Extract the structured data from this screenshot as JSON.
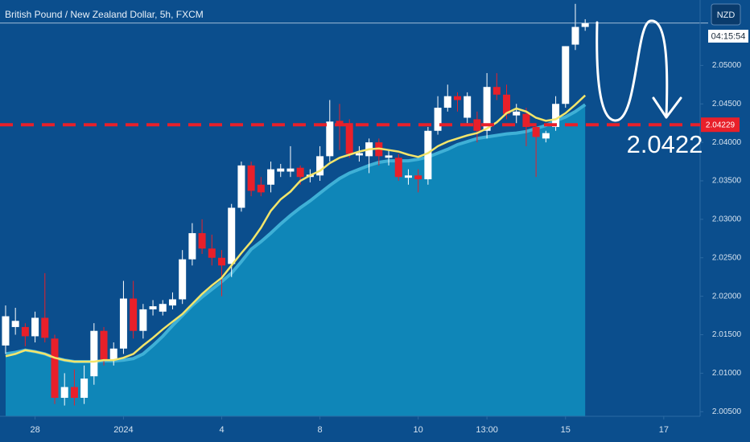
{
  "chart_data": {
    "type": "candlestick",
    "title": "British Pound / New Zealand Dollar, 5h, FXCM",
    "currency": "NZD",
    "countdown": "04:15:54",
    "annotation": "2.0422",
    "up_color": "#ffffff",
    "down_color": "#e8202a",
    "grid": false,
    "x": [
      0,
      1,
      2,
      3,
      4,
      5,
      6,
      7,
      8,
      9,
      10,
      11,
      12,
      13,
      14,
      15,
      16,
      17,
      18,
      19,
      20,
      21,
      22,
      23,
      24,
      25,
      26,
      27,
      28,
      29,
      30,
      31,
      32,
      33,
      34,
      35,
      36,
      37,
      38,
      39,
      40,
      41,
      42,
      43,
      44,
      45,
      46,
      47,
      48,
      49,
      50,
      51,
      52,
      53,
      54,
      55,
      56,
      57,
      58,
      59
    ],
    "open": [
      2.0136,
      2.016,
      2.016,
      2.0148,
      2.0172,
      2.0145,
      2.0068,
      2.0082,
      2.0068,
      2.0096,
      2.0155,
      2.0118,
      2.0132,
      2.0197,
      2.0155,
      2.0183,
      2.018,
      2.0188,
      2.0196,
      2.0248,
      2.0282,
      2.0262,
      2.025,
      2.0242,
      2.0315,
      2.037,
      2.0345,
      2.0345,
      2.0362,
      2.0362,
      2.0367,
      2.0355,
      2.0357,
      2.0382,
      2.0428,
      2.0425,
      2.0383,
      2.0382,
      2.04,
      2.038,
      2.038,
      2.0354,
      2.0357,
      2.0352,
      2.0415,
      2.0445,
      2.046,
      2.0432,
      2.043,
      2.0415,
      2.0472,
      2.0462,
      2.0435,
      2.0437,
      2.042,
      2.0405,
      2.042,
      2.045,
      2.0527,
      2.055
    ],
    "high": [
      2.0188,
      2.0185,
      2.0165,
      2.018,
      2.023,
      2.015,
      2.01,
      2.0105,
      2.011,
      2.0165,
      2.016,
      2.014,
      2.022,
      2.022,
      2.019,
      2.0195,
      2.0195,
      2.0205,
      2.026,
      2.0295,
      2.03,
      2.028,
      2.026,
      2.032,
      2.0375,
      2.0375,
      2.0355,
      2.0375,
      2.0372,
      2.0395,
      2.037,
      2.0365,
      2.0395,
      2.0455,
      2.045,
      2.043,
      2.0395,
      2.0405,
      2.0405,
      2.039,
      2.0385,
      2.0365,
      2.0365,
      2.042,
      2.046,
      2.0475,
      2.0465,
      2.0465,
      2.044,
      2.049,
      2.049,
      2.0475,
      2.045,
      2.0445,
      2.0425,
      2.0415,
      2.046,
      2.0525,
      2.058,
      2.056
    ],
    "low": [
      2.0125,
      2.015,
      2.0135,
      2.014,
      2.014,
      2.006,
      2.0058,
      2.0058,
      2.006,
      2.0085,
      2.011,
      2.011,
      2.0125,
      2.0145,
      2.0145,
      2.0175,
      2.0175,
      2.0183,
      2.019,
      2.024,
      2.0255,
      2.024,
      2.02,
      2.0225,
      2.031,
      2.033,
      2.033,
      2.0335,
      2.0355,
      2.0355,
      2.0345,
      2.0348,
      2.035,
      2.0375,
      2.039,
      2.038,
      2.0375,
      2.036,
      2.037,
      2.037,
      2.035,
      2.0345,
      2.0335,
      2.0345,
      2.041,
      2.044,
      2.044,
      2.0425,
      2.04,
      2.0405,
      2.0455,
      2.043,
      2.0425,
      2.0395,
      2.0355,
      2.04,
      2.0415,
      2.0445,
      2.052,
      2.0545
    ],
    "close": [
      2.0174,
      2.0168,
      2.0148,
      2.0172,
      2.0146,
      2.0068,
      2.0082,
      2.0068,
      2.0093,
      2.0155,
      2.0118,
      2.0132,
      2.0197,
      2.0155,
      2.0183,
      2.0187,
      2.019,
      2.0196,
      2.0248,
      2.0282,
      2.0262,
      2.025,
      2.024,
      2.0315,
      2.037,
      2.0337,
      2.0335,
      2.0365,
      2.0366,
      2.0366,
      2.0355,
      2.0358,
      2.0382,
      2.0427,
      2.0423,
      2.0385,
      2.0386,
      2.04,
      2.0382,
      2.0383,
      2.0355,
      2.0357,
      2.0352,
      2.0415,
      2.0445,
      2.046,
      2.0455,
      2.046,
      2.0415,
      2.0472,
      2.0462,
      2.0437,
      2.044,
      2.042,
      2.0407,
      2.0412,
      2.045,
      2.0525,
      2.055,
      2.0555
    ],
    "overlays": [
      {
        "type": "area",
        "color": "#0f86b8",
        "line_color": "#3fb0d6",
        "values": [
          2.0125,
          2.0127,
          2.013,
          2.0128,
          2.0125,
          2.012,
          2.0117,
          2.0115,
          2.0115,
          2.0115,
          2.0116,
          2.0116,
          2.0117,
          2.0119,
          2.0125,
          2.0136,
          2.0148,
          2.0162,
          2.0175,
          2.0188,
          2.0199,
          2.0209,
          2.0219,
          2.023,
          2.0245,
          2.0261,
          2.0271,
          2.0282,
          2.0294,
          2.0305,
          2.0315,
          2.0324,
          2.0334,
          2.0344,
          2.0353,
          2.036,
          2.0365,
          2.037,
          2.0374,
          2.0376,
          2.0376,
          2.0376,
          2.0378,
          2.0381,
          2.0386,
          2.0391,
          2.0397,
          2.0401,
          2.0405,
          2.0407,
          2.0409,
          2.0411,
          2.0412,
          2.0414,
          2.0418,
          2.0422,
          2.0428,
          2.0433,
          2.044,
          2.0449
        ]
      },
      {
        "type": "line",
        "color": "#f3e56a",
        "values": [
          2.0122,
          2.0125,
          2.013,
          2.0128,
          2.0125,
          2.012,
          2.0117,
          2.0115,
          2.0115,
          2.0115,
          2.0117,
          2.0117,
          2.012,
          2.0125,
          2.0136,
          2.0146,
          2.0157,
          2.0167,
          2.0177,
          2.019,
          2.0203,
          2.0214,
          2.0224,
          2.024,
          2.0256,
          2.0271,
          2.0289,
          2.0311,
          2.0326,
          2.0336,
          2.035,
          2.0357,
          2.0363,
          2.0373,
          2.038,
          2.0384,
          2.0388,
          2.0391,
          2.0392,
          2.039,
          2.0388,
          2.0384,
          2.0381,
          2.0386,
          2.0395,
          2.0401,
          2.0405,
          2.0409,
          2.0412,
          2.0418,
          2.0426,
          2.0438,
          2.0444,
          2.044,
          2.0432,
          2.0428,
          2.043,
          2.0438,
          2.0449,
          2.0461
        ]
      }
    ],
    "hline": {
      "value": 2.04229,
      "color": "#e8202a"
    },
    "xlim": [
      -0.57,
      70.7
    ],
    "xticks": [
      {
        "value": 3,
        "label": "28"
      },
      {
        "value": 12,
        "label": "2024"
      },
      {
        "value": 22,
        "label": "4"
      },
      {
        "value": 32,
        "label": "8"
      },
      {
        "value": 42,
        "label": "10"
      },
      {
        "value": 49,
        "label": "13:00"
      },
      {
        "value": 57,
        "label": "15"
      },
      {
        "value": 67,
        "label": "17"
      }
    ],
    "ylim": [
      2.0044,
      2.0585
    ],
    "yticks": [
      {
        "value": 2.005,
        "label": "2.00500"
      },
      {
        "value": 2.01,
        "label": "2.01000"
      },
      {
        "value": 2.015,
        "label": "2.01500"
      },
      {
        "value": 2.02,
        "label": "2.02000"
      },
      {
        "value": 2.025,
        "label": "2.02500"
      },
      {
        "value": 2.03,
        "label": "2.03000"
      },
      {
        "value": 2.035,
        "label": "2.03500"
      },
      {
        "value": 2.04,
        "label": "2.04000"
      },
      {
        "value": 2.045,
        "label": "2.04500"
      },
      {
        "value": 2.05,
        "label": "2.05000"
      }
    ]
  }
}
